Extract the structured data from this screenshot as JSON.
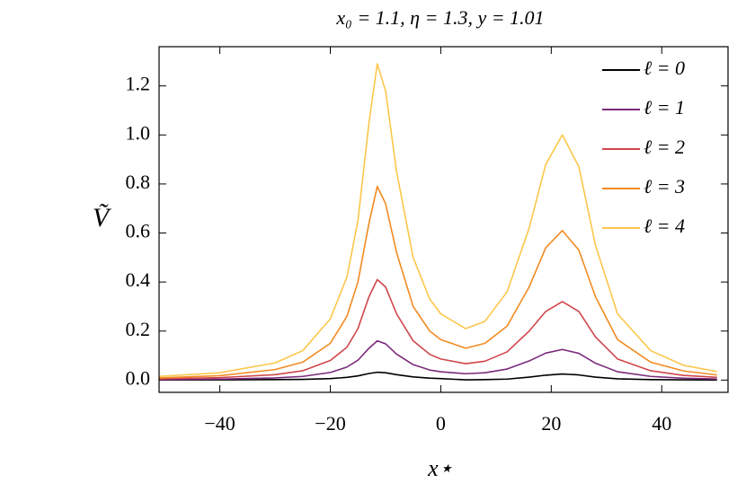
{
  "chart_data": {
    "type": "line",
    "title": "x₀ = 1.1, η = 1.3, y = 1.01",
    "x_label": "x⋆",
    "y_label": "Ṽ",
    "x": [
      -51,
      -40,
      -30,
      -25,
      -20,
      -17,
      -15,
      -13,
      -11.5,
      -10,
      -8,
      -5,
      -2,
      0,
      4.5,
      8,
      12,
      16,
      19,
      22,
      25,
      28,
      32,
      38,
      44,
      50
    ],
    "series": [
      {
        "name": "ℓ = 0",
        "color": "#000000",
        "values": [
          0.0004,
          0.001,
          0.002,
          0.003,
          0.006,
          0.011,
          0.017,
          0.027,
          0.032,
          0.03,
          0.022,
          0.013,
          0.008,
          0.006,
          0.001,
          0.002,
          0.004,
          0.012,
          0.02,
          0.025,
          0.021,
          0.012,
          0.005,
          0.002,
          0.001,
          0.0005
        ]
      },
      {
        "name": "ℓ = 1",
        "color": "#7b2a7b",
        "values": [
          0.002,
          0.004,
          0.009,
          0.015,
          0.031,
          0.053,
          0.081,
          0.13,
          0.16,
          0.148,
          0.106,
          0.063,
          0.041,
          0.034,
          0.026,
          0.03,
          0.045,
          0.078,
          0.11,
          0.125,
          0.109,
          0.069,
          0.034,
          0.015,
          0.0075,
          0.0044
        ]
      },
      {
        "name": "ℓ = 2",
        "color": "#d0464b",
        "values": [
          0.005,
          0.01,
          0.022,
          0.038,
          0.08,
          0.134,
          0.21,
          0.34,
          0.41,
          0.38,
          0.27,
          0.16,
          0.105,
          0.086,
          0.067,
          0.077,
          0.115,
          0.2,
          0.28,
          0.32,
          0.28,
          0.176,
          0.086,
          0.038,
          0.019,
          0.011
        ]
      },
      {
        "name": "ℓ = 3",
        "color": "#f28b22",
        "values": [
          0.009,
          0.018,
          0.043,
          0.073,
          0.15,
          0.26,
          0.4,
          0.64,
          0.79,
          0.72,
          0.52,
          0.3,
          0.2,
          0.165,
          0.13,
          0.15,
          0.22,
          0.38,
          0.54,
          0.61,
          0.53,
          0.34,
          0.165,
          0.073,
          0.037,
          0.021
        ]
      },
      {
        "name": "ℓ = 4",
        "color": "#fbc74a",
        "values": [
          0.015,
          0.03,
          0.07,
          0.12,
          0.25,
          0.42,
          0.65,
          1.05,
          1.29,
          1.18,
          0.85,
          0.5,
          0.33,
          0.27,
          0.21,
          0.24,
          0.36,
          0.62,
          0.88,
          1.0,
          0.87,
          0.55,
          0.27,
          0.12,
          0.06,
          0.035
        ]
      }
    ],
    "xlim": [
      -51,
      52
    ],
    "ylim": [
      -0.05,
      1.36
    ],
    "xticks": [
      {
        "value": -40,
        "label": "−40"
      },
      {
        "value": -20,
        "label": "−20"
      },
      0,
      20,
      40
    ],
    "yticks": [
      {
        "value": 0,
        "label": "0.0"
      },
      {
        "value": 0.2,
        "label": "0.2"
      },
      {
        "value": 0.4,
        "label": "0.4"
      },
      {
        "value": 0.6,
        "label": "0.6"
      },
      {
        "value": 0.8,
        "label": "0.8"
      },
      {
        "value": 1.0,
        "label": "1.0"
      },
      {
        "value": 1.2,
        "label": "1.2"
      }
    ],
    "legend": "upper right",
    "grid": false
  }
}
